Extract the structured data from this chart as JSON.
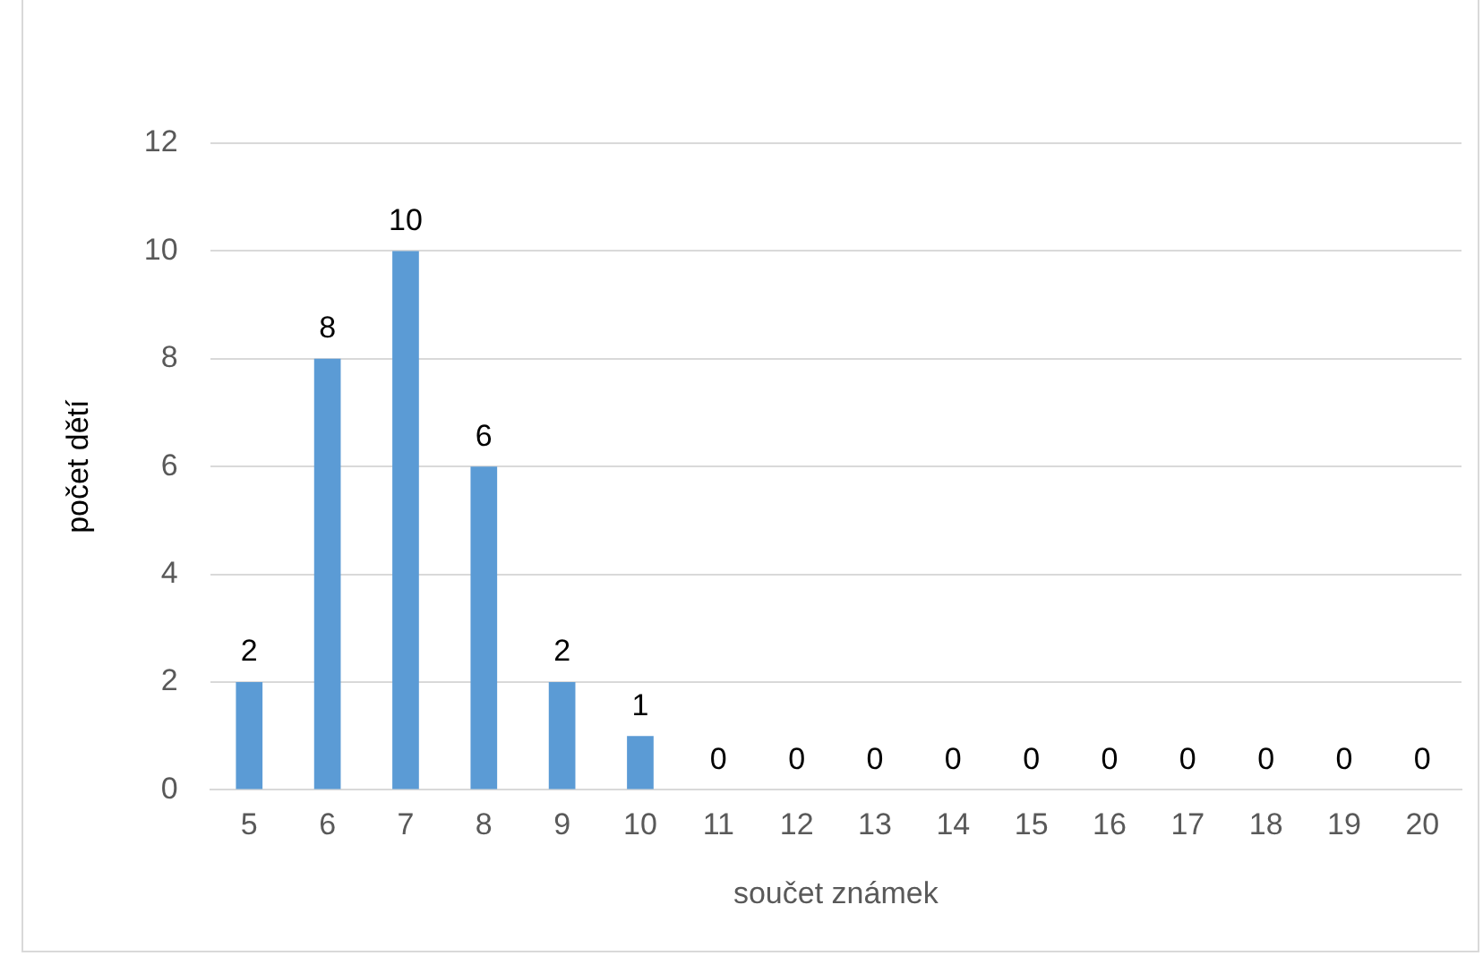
{
  "chart_data": {
    "type": "bar",
    "xlabel": "součet známek",
    "ylabel": "počet dětí",
    "categories": [
      "5",
      "6",
      "7",
      "8",
      "9",
      "10",
      "11",
      "12",
      "13",
      "14",
      "15",
      "16",
      "17",
      "18",
      "19",
      "20"
    ],
    "values": [
      2,
      8,
      10,
      6,
      2,
      1,
      0,
      0,
      0,
      0,
      0,
      0,
      0,
      0,
      0,
      0
    ],
    "color": "#5b9bd5",
    "ylim": [
      0,
      12
    ],
    "yticks": [
      0,
      2,
      4,
      6,
      8,
      10,
      12
    ],
    "grid": "y",
    "data_labels": true,
    "legend": false
  }
}
